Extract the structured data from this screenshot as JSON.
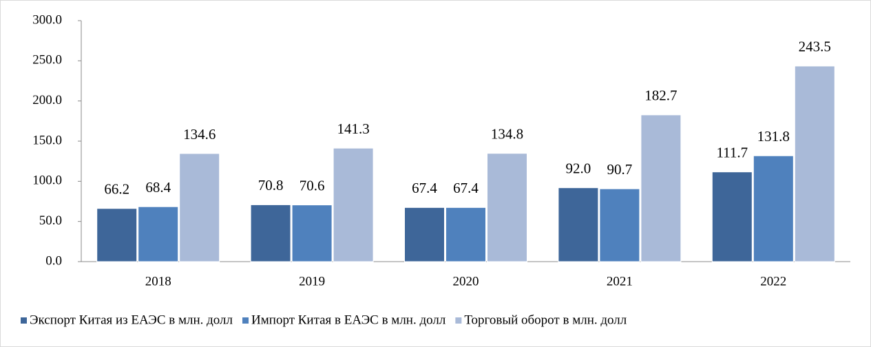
{
  "chart_data": {
    "type": "bar",
    "categories": [
      "2018",
      "2019",
      "2020",
      "2021",
      "2022"
    ],
    "series": [
      {
        "name": "Экспорт Китая из ЕАЭС в млн. долл",
        "color": "#3e6699",
        "values": [
          66.2,
          70.8,
          67.4,
          92.0,
          111.7
        ],
        "value_labels": [
          "66.2",
          "70.8",
          "67.4",
          "92.0",
          "111.7"
        ]
      },
      {
        "name": "Импорт Китая в ЕАЭС в млн. долл",
        "color": "#4f81bd",
        "values": [
          68.4,
          70.6,
          67.4,
          90.7,
          131.8
        ],
        "value_labels": [
          "68.4",
          "70.6",
          "67.4",
          "90.7",
          "131.8"
        ]
      },
      {
        "name": "Торговый оборот в млн. долл",
        "color": "#a9bad8",
        "values": [
          134.6,
          141.3,
          134.8,
          182.7,
          243.5
        ],
        "value_labels": [
          "134.6",
          "141.3",
          "134.8",
          "182.7",
          "243.5"
        ]
      }
    ],
    "ylim": [
      0,
      300
    ],
    "yticks": [
      {
        "value": 0,
        "label": "0.0"
      },
      {
        "value": 50,
        "label": "50.0"
      },
      {
        "value": 100,
        "label": "100.0"
      },
      {
        "value": 150,
        "label": "150.0"
      },
      {
        "value": 200,
        "label": "200.0"
      },
      {
        "value": 250,
        "label": "250.0"
      },
      {
        "value": 300,
        "label": "300.0"
      }
    ],
    "grid": false,
    "legend": "bottom"
  }
}
